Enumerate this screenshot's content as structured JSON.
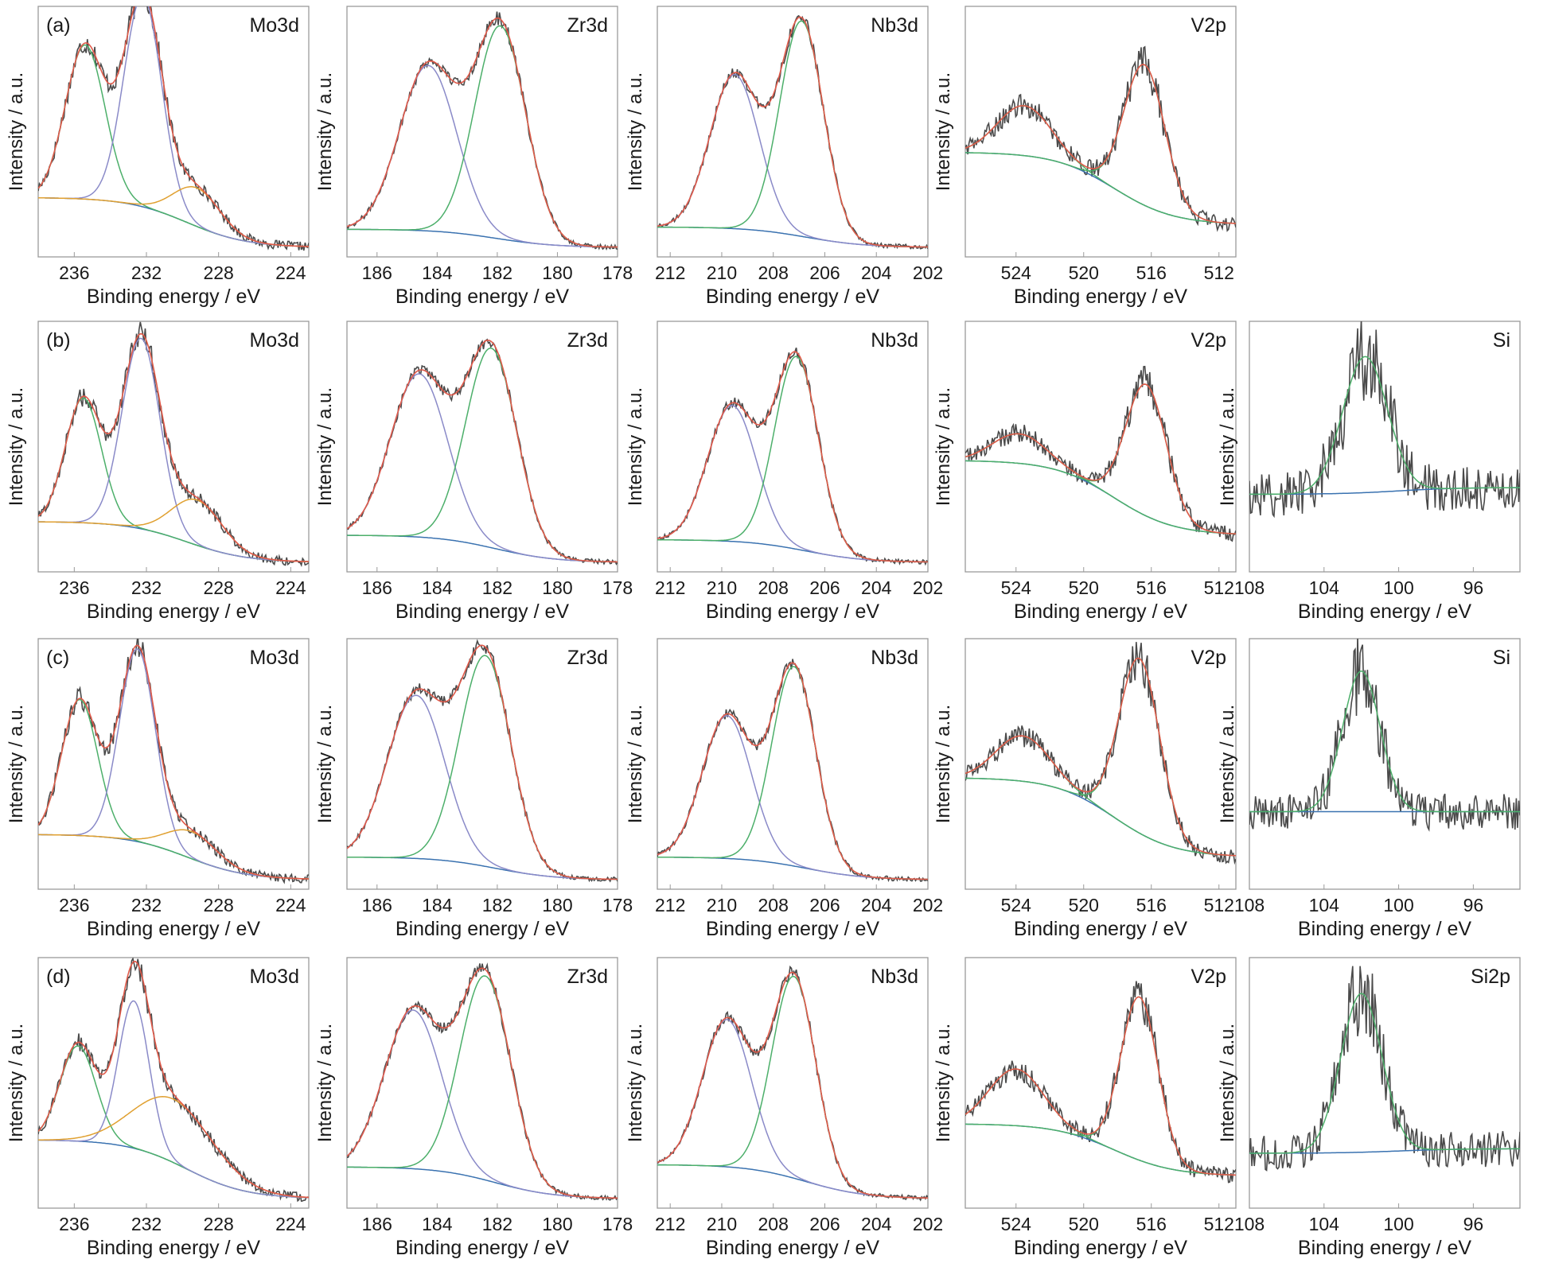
{
  "figure": {
    "ylabel": "Intensity / a.u.",
    "xlabel": "Binding energy / eV",
    "row_labels": [
      "(a)",
      "(b)",
      "(c)",
      "(d)"
    ],
    "colors": {
      "raw": "#4a4a4a",
      "envelope": "#e05a4a",
      "comp1": "#8a8ac8",
      "comp2": "#4caf6a",
      "comp3": "#e0a030",
      "background": "#3a72b0",
      "frame": "#9a9a9a"
    }
  },
  "chart_data": [
    {
      "type": "line",
      "row": 0,
      "col": 0,
      "title": "Mo3d",
      "xlim": [
        238,
        223
      ],
      "ticks": [
        236,
        232,
        228,
        224
      ],
      "peaks": [
        {
          "center": 235.4,
          "height": 0.68,
          "width": 1.1,
          "color": "comp2"
        },
        {
          "center": 232.2,
          "height": 0.93,
          "width": 1.05,
          "color": "comp1"
        },
        {
          "center": 229.2,
          "height": 0.17,
          "width": 1.3,
          "color": "comp3"
        }
      ],
      "background": [
        0.22,
        0.0
      ],
      "noise": 0.02
    },
    {
      "type": "line",
      "row": 0,
      "col": 1,
      "title": "Zr3d",
      "xlim": [
        187,
        178
      ],
      "ticks": [
        186,
        184,
        182,
        180,
        178
      ],
      "peaks": [
        {
          "center": 184.3,
          "height": 0.73,
          "width": 0.95,
          "color": "comp1"
        },
        {
          "center": 181.9,
          "height": 0.94,
          "width": 0.85,
          "color": "comp2"
        }
      ],
      "background": [
        0.08,
        0.0
      ],
      "noise": 0.01
    },
    {
      "type": "line",
      "row": 0,
      "col": 2,
      "title": "Nb3d",
      "xlim": [
        212.5,
        202
      ],
      "ticks": [
        212,
        210,
        208,
        206,
        204,
        202
      ],
      "peaks": [
        {
          "center": 209.5,
          "height": 0.68,
          "width": 0.95,
          "color": "comp1"
        },
        {
          "center": 206.9,
          "height": 0.95,
          "width": 0.85,
          "color": "comp2"
        }
      ],
      "background": [
        0.09,
        0.0
      ],
      "noise": 0.01
    },
    {
      "type": "line",
      "row": 0,
      "col": 3,
      "title": "V2p",
      "xlim": [
        527,
        511
      ],
      "ticks": [
        524,
        520,
        516,
        512
      ],
      "peaks": [
        {
          "center": 523.5,
          "height": 0.22,
          "width": 1.6,
          "color": "comp2"
        },
        {
          "center": 516.4,
          "height": 0.62,
          "width": 1.2,
          "color": "comp2"
        }
      ],
      "background": [
        0.42,
        0.1
      ],
      "noise": 0.035
    },
    {
      "type": "line",
      "row": 1,
      "col": 0,
      "title": "Mo3d",
      "xlim": [
        238,
        223
      ],
      "ticks": [
        236,
        232,
        228,
        224
      ],
      "peaks": [
        {
          "center": 235.5,
          "height": 0.55,
          "width": 1.0,
          "color": "comp2"
        },
        {
          "center": 232.3,
          "height": 0.84,
          "width": 1.05,
          "color": "comp1"
        },
        {
          "center": 229.2,
          "height": 0.2,
          "width": 1.4,
          "color": "comp3"
        }
      ],
      "background": [
        0.18,
        0.0
      ],
      "noise": 0.02
    },
    {
      "type": "line",
      "row": 1,
      "col": 1,
      "title": "Zr3d",
      "xlim": [
        187,
        178
      ],
      "ticks": [
        186,
        184,
        182,
        180,
        178
      ],
      "peaks": [
        {
          "center": 184.6,
          "height": 0.72,
          "width": 0.95,
          "color": "comp1"
        },
        {
          "center": 182.2,
          "height": 0.88,
          "width": 0.85,
          "color": "comp2"
        }
      ],
      "background": [
        0.12,
        0.0
      ],
      "noise": 0.01
    },
    {
      "type": "line",
      "row": 1,
      "col": 2,
      "title": "Nb3d",
      "xlim": [
        212.5,
        202
      ],
      "ticks": [
        212,
        210,
        208,
        206,
        204,
        202
      ],
      "peaks": [
        {
          "center": 209.6,
          "height": 0.6,
          "width": 0.95,
          "color": "comp1"
        },
        {
          "center": 207.1,
          "height": 0.85,
          "width": 0.85,
          "color": "comp2"
        }
      ],
      "background": [
        0.1,
        0.0
      ],
      "noise": 0.01
    },
    {
      "type": "line",
      "row": 1,
      "col": 3,
      "title": "V2p",
      "xlim": [
        527,
        511
      ],
      "ticks": [
        524,
        520,
        516,
        512
      ],
      "peaks": [
        {
          "center": 523.8,
          "height": 0.13,
          "width": 1.6,
          "color": "comp2"
        },
        {
          "center": 516.3,
          "height": 0.58,
          "width": 1.2,
          "color": "comp2"
        }
      ],
      "background": [
        0.45,
        0.12
      ],
      "noise": 0.035
    },
    {
      "type": "line",
      "row": 1,
      "col": 4,
      "title": "Si",
      "xlim": [
        108,
        93.5
      ],
      "ticks": [
        108,
        104,
        100,
        96
      ],
      "peaks": [
        {
          "center": 101.8,
          "height": 0.6,
          "width": 1.2,
          "color": "comp2"
        }
      ],
      "background": [
        0.3,
        0.33
      ],
      "noise": 0.1
    },
    {
      "type": "line",
      "row": 2,
      "col": 0,
      "title": "Mo3d",
      "xlim": [
        238,
        223
      ],
      "ticks": [
        236,
        232,
        228,
        224
      ],
      "peaks": [
        {
          "center": 235.7,
          "height": 0.6,
          "width": 1.0,
          "color": "comp2"
        },
        {
          "center": 232.5,
          "height": 0.85,
          "width": 1.0,
          "color": "comp1"
        },
        {
          "center": 229.5,
          "height": 0.12,
          "width": 1.4,
          "color": "comp3"
        }
      ],
      "background": [
        0.2,
        0.0
      ],
      "noise": 0.02
    },
    {
      "type": "line",
      "row": 2,
      "col": 1,
      "title": "Zr3d",
      "xlim": [
        187,
        178
      ],
      "ticks": [
        186,
        184,
        182,
        180,
        178
      ],
      "peaks": [
        {
          "center": 184.7,
          "height": 0.72,
          "width": 0.95,
          "color": "comp1"
        },
        {
          "center": 182.4,
          "height": 0.93,
          "width": 0.85,
          "color": "comp2"
        }
      ],
      "background": [
        0.1,
        0.0
      ],
      "noise": 0.01
    },
    {
      "type": "line",
      "row": 2,
      "col": 2,
      "title": "Nb3d",
      "xlim": [
        212.5,
        202
      ],
      "ticks": [
        212,
        210,
        208,
        206,
        204,
        202
      ],
      "peaks": [
        {
          "center": 209.8,
          "height": 0.63,
          "width": 0.95,
          "color": "comp1"
        },
        {
          "center": 207.2,
          "height": 0.88,
          "width": 0.85,
          "color": "comp2"
        }
      ],
      "background": [
        0.1,
        0.0
      ],
      "noise": 0.01
    },
    {
      "type": "line",
      "row": 2,
      "col": 3,
      "title": "V2p",
      "xlim": [
        527,
        511
      ],
      "ticks": [
        524,
        520,
        516,
        512
      ],
      "peaks": [
        {
          "center": 523.6,
          "height": 0.2,
          "width": 1.6,
          "color": "comp2"
        },
        {
          "center": 516.7,
          "height": 0.77,
          "width": 1.2,
          "color": "comp2"
        }
      ],
      "background": [
        0.45,
        0.1
      ],
      "noise": 0.035
    },
    {
      "type": "line",
      "row": 2,
      "col": 4,
      "title": "Si",
      "xlim": [
        108,
        93.5
      ],
      "ticks": [
        108,
        104,
        100,
        96
      ],
      "peaks": [
        {
          "center": 102.0,
          "height": 0.62,
          "width": 1.0,
          "color": "comp2"
        }
      ],
      "background": [
        0.3,
        0.3
      ],
      "noise": 0.08
    },
    {
      "type": "line",
      "row": 3,
      "col": 0,
      "title": "Mo3d",
      "xlim": [
        238,
        223
      ],
      "ticks": [
        236,
        232,
        228,
        224
      ],
      "peaks": [
        {
          "center": 235.8,
          "height": 0.42,
          "width": 1.0,
          "color": "comp2"
        },
        {
          "center": 232.7,
          "height": 0.65,
          "width": 0.85,
          "color": "comp1"
        },
        {
          "center": 230.5,
          "height": 0.28,
          "width": 2.2,
          "color": "comp3"
        }
      ],
      "background": [
        0.26,
        0.0
      ],
      "noise": 0.02
    },
    {
      "type": "line",
      "row": 3,
      "col": 1,
      "title": "Zr3d",
      "xlim": [
        187,
        178
      ],
      "ticks": [
        186,
        184,
        182,
        180,
        178
      ],
      "peaks": [
        {
          "center": 184.8,
          "height": 0.7,
          "width": 0.95,
          "color": "comp1"
        },
        {
          "center": 182.4,
          "height": 0.9,
          "width": 0.85,
          "color": "comp2"
        }
      ],
      "background": [
        0.14,
        0.0
      ],
      "noise": 0.01
    },
    {
      "type": "line",
      "row": 3,
      "col": 2,
      "title": "Nb3d",
      "xlim": [
        212.5,
        202
      ],
      "ticks": [
        212,
        210,
        208,
        206,
        204,
        202
      ],
      "peaks": [
        {
          "center": 209.8,
          "height": 0.65,
          "width": 0.95,
          "color": "comp1"
        },
        {
          "center": 207.2,
          "height": 0.89,
          "width": 0.85,
          "color": "comp2"
        }
      ],
      "background": [
        0.15,
        0.0
      ],
      "noise": 0.01
    },
    {
      "type": "line",
      "row": 3,
      "col": 3,
      "title": "V2p",
      "xlim": [
        527,
        511
      ],
      "ticks": [
        524,
        520,
        516,
        512
      ],
      "peaks": [
        {
          "center": 524.0,
          "height": 0.25,
          "width": 1.6,
          "color": "comp2"
        },
        {
          "center": 516.7,
          "height": 0.72,
          "width": 1.1,
          "color": "comp2"
        }
      ],
      "background": [
        0.33,
        0.1
      ],
      "noise": 0.035
    },
    {
      "type": "line",
      "row": 3,
      "col": 4,
      "title": "Si2p",
      "xlim": [
        108,
        93.5
      ],
      "ticks": [
        108,
        104,
        100,
        96
      ],
      "peaks": [
        {
          "center": 102.0,
          "height": 0.7,
          "width": 1.1,
          "color": "comp2"
        }
      ],
      "background": [
        0.2,
        0.22
      ],
      "noise": 0.08
    }
  ]
}
